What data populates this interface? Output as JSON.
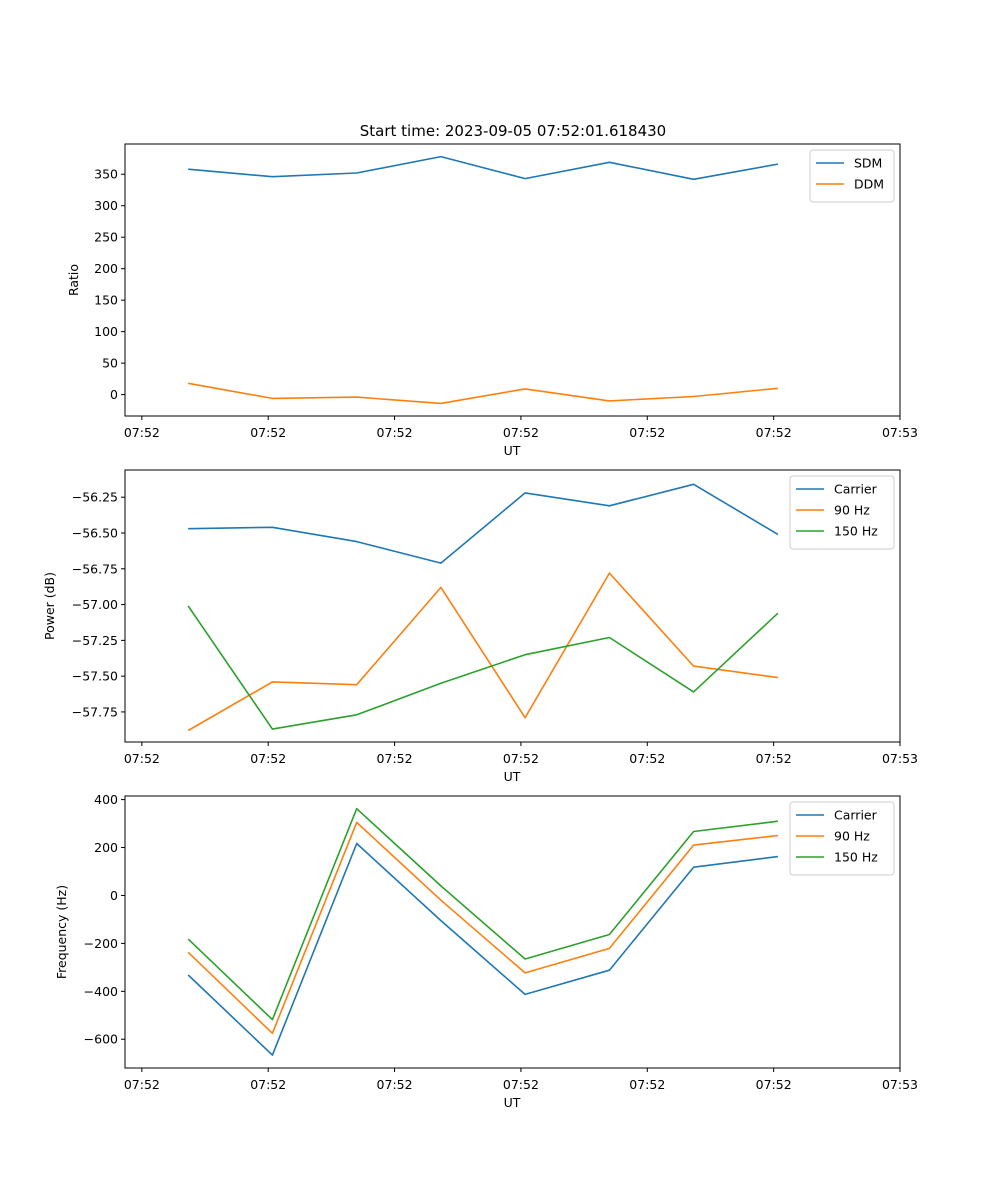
{
  "figure_title": "Start time: 2023-09-05 07:52:01.618430",
  "chart_data": [
    {
      "type": "line",
      "title": "Start time: 2023-09-05 07:52:01.618430",
      "xlabel": "UT",
      "ylabel": "Ratio",
      "x": [
        1,
        2,
        3,
        4,
        5,
        6,
        7,
        8
      ],
      "xlim": [
        0.25,
        9.45
      ],
      "x_ticks": [
        0.45,
        1.95,
        3.45,
        4.95,
        6.45,
        7.95,
        9.45
      ],
      "x_tick_labels": [
        "07:52",
        "07:52",
        "07:52",
        "07:52",
        "07:52",
        "07:52",
        "07:53"
      ],
      "ylim": [
        -34,
        398
      ],
      "y_ticks": [
        0,
        50,
        100,
        150,
        200,
        250,
        300,
        350
      ],
      "y_tick_labels": [
        "0",
        "50",
        "100",
        "150",
        "200",
        "250",
        "300",
        "350"
      ],
      "legend_position": "top-right",
      "series": [
        {
          "name": "SDM",
          "color": "#1f77b4",
          "values": [
            358,
            346,
            352,
            378,
            343,
            369,
            342,
            366
          ]
        },
        {
          "name": "DDM",
          "color": "#ff7f0e",
          "values": [
            18,
            -6,
            -4,
            -14,
            9,
            -10,
            -3,
            10
          ]
        }
      ]
    },
    {
      "type": "line",
      "title": "",
      "xlabel": "UT",
      "ylabel": "Power (dB)",
      "x": [
        1,
        2,
        3,
        4,
        5,
        6,
        7,
        8
      ],
      "xlim": [
        0.25,
        9.45
      ],
      "x_ticks": [
        0.45,
        1.95,
        3.45,
        4.95,
        6.45,
        7.95,
        9.45
      ],
      "x_tick_labels": [
        "07:52",
        "07:52",
        "07:52",
        "07:52",
        "07:52",
        "07:52",
        "07:53"
      ],
      "ylim": [
        -57.96,
        -56.06
      ],
      "y_ticks": [
        -57.75,
        -57.5,
        -57.25,
        -57.0,
        -56.75,
        -56.5,
        -56.25
      ],
      "y_tick_labels": [
        "−57.75",
        "−57.50",
        "−57.25",
        "−57.00",
        "−56.75",
        "−56.50",
        "−56.25"
      ],
      "legend_position": "top-right",
      "series": [
        {
          "name": "Carrier",
          "color": "#1f77b4",
          "values": [
            -56.47,
            -56.46,
            -56.56,
            -56.71,
            -56.22,
            -56.31,
            -56.16,
            -56.51
          ]
        },
        {
          "name": "90 Hz",
          "color": "#ff7f0e",
          "values": [
            -57.88,
            -57.54,
            -57.56,
            -56.88,
            -57.79,
            -56.78,
            -57.43,
            -57.51
          ]
        },
        {
          "name": "150 Hz",
          "color": "#2ca02c",
          "values": [
            -57.01,
            -57.87,
            -57.77,
            -57.55,
            -57.35,
            -57.23,
            -57.61,
            -57.06
          ]
        }
      ]
    },
    {
      "type": "line",
      "title": "",
      "xlabel": "UT",
      "ylabel": "Frequency (Hz)",
      "x": [
        1,
        2,
        3,
        4,
        5,
        6,
        7,
        8
      ],
      "xlim": [
        0.25,
        9.45
      ],
      "x_ticks": [
        0.45,
        1.95,
        3.45,
        4.95,
        6.45,
        7.95,
        9.45
      ],
      "x_tick_labels": [
        "07:52",
        "07:52",
        "07:52",
        "07:52",
        "07:52",
        "07:52",
        "07:53"
      ],
      "ylim": [
        -720,
        415
      ],
      "y_ticks": [
        -600,
        -400,
        -200,
        0,
        200,
        400
      ],
      "y_tick_labels": [
        "−600",
        "−400",
        "−200",
        "0",
        "200",
        "400"
      ],
      "legend_position": "top-right",
      "series": [
        {
          "name": "Carrier",
          "color": "#1f77b4",
          "values": [
            -332,
            -666,
            217,
            -105,
            -413,
            -312,
            118,
            162
          ]
        },
        {
          "name": "90 Hz",
          "color": "#ff7f0e",
          "values": [
            -237,
            -575,
            305,
            -20,
            -323,
            -221,
            210,
            250
          ]
        },
        {
          "name": "150 Hz",
          "color": "#2ca02c",
          "values": [
            -182,
            -518,
            362,
            40,
            -265,
            -163,
            267,
            310
          ]
        }
      ]
    }
  ]
}
